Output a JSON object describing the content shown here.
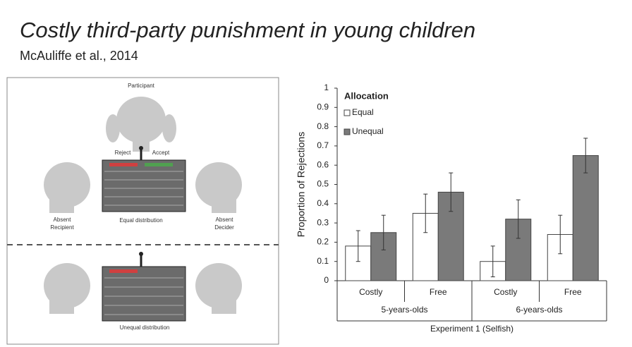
{
  "title": "Costly third-party punishment in young children",
  "subtitle": "McAuliffe et al., 2014",
  "diagram": {
    "participant": "Participant",
    "reject": "Reject",
    "accept": "Accept",
    "absent_recipient": [
      "Absent",
      "Recipient"
    ],
    "equal_distribution": "Equal distribution",
    "absent_decider": [
      "Absent",
      "Decider"
    ],
    "unequal_distribution": "Unequal distribution"
  },
  "chart_data": {
    "type": "bar",
    "categories": [
      "Costly",
      "Free",
      "Costly",
      "Free"
    ],
    "groups": [
      "5-years-olds",
      "6-years-olds"
    ],
    "xlabel": "Experiment 1 (Selfish)",
    "ylabel": "Proportion of Rejections",
    "legend_title": "Allocation",
    "series": [
      {
        "name": "Equal",
        "color": "#ffffff",
        "values": [
          0.18,
          0.35,
          0.1,
          0.24
        ],
        "errors": [
          0.08,
          0.1,
          0.08,
          0.1
        ]
      },
      {
        "name": "Unequal",
        "color": "#7a7a7a",
        "values": [
          0.25,
          0.46,
          0.32,
          0.65
        ],
        "errors": [
          0.09,
          0.1,
          0.1,
          0.09
        ]
      }
    ],
    "ylim": [
      0,
      1
    ],
    "yticks": [
      0,
      0.1,
      0.2,
      0.3,
      0.4,
      0.5,
      0.6,
      0.7,
      0.8,
      0.9,
      1
    ],
    "grid": false
  }
}
